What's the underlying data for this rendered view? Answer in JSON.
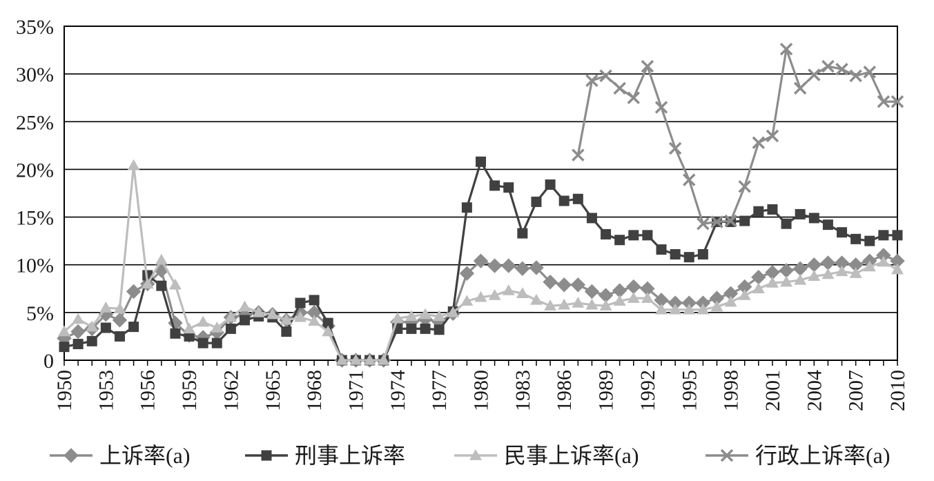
{
  "chart_data": {
    "type": "line",
    "title": "",
    "xlabel": "",
    "ylabel": "",
    "x_range": [
      1950,
      2010
    ],
    "ylim": [
      0,
      35
    ],
    "y_ticks": [
      {
        "value": 0,
        "label": "0"
      },
      {
        "value": 5,
        "label": "5%"
      },
      {
        "value": 10,
        "label": "10%"
      },
      {
        "value": 15,
        "label": "15%"
      },
      {
        "value": 20,
        "label": "20%"
      },
      {
        "value": 25,
        "label": "25%"
      },
      {
        "value": 30,
        "label": "30%"
      },
      {
        "value": 35,
        "label": "35%"
      }
    ],
    "x_tick_labels": [
      "1950",
      "1953",
      "1956",
      "1959",
      "1962",
      "1965",
      "1968",
      "1971",
      "1974",
      "1977",
      "1980",
      "1983",
      "1986",
      "1989",
      "1992",
      "1995",
      "1998",
      "2001",
      "2004",
      "2007",
      "2010"
    ],
    "grid": "horizontal",
    "legend_position": "bottom",
    "series": [
      {
        "name": "上诉率(a)",
        "color": "#8c8c8c",
        "marker": "diamond",
        "x_start": 1950,
        "values": [
          2.3,
          3.0,
          3.3,
          4.8,
          4.2,
          7.2,
          8.0,
          9.4,
          3.9,
          2.6,
          2.4,
          2.9,
          4.5,
          4.7,
          5.0,
          4.8,
          4.2,
          5.0,
          5.0,
          3.6,
          0,
          0,
          0,
          0,
          4.0,
          4.0,
          4.3,
          4.0,
          4.9,
          9.1,
          10.4,
          9.9,
          9.9,
          9.6,
          9.7,
          8.2,
          7.9,
          7.9,
          7.2,
          6.8,
          7.3,
          7.7,
          7.5,
          6.3,
          6.0,
          6.0,
          6.0,
          6.5,
          7.0,
          7.7,
          8.7,
          9.2,
          9.4,
          9.6,
          10.0,
          10.2,
          10.2,
          10.0,
          10.4,
          11.0,
          10.4
        ]
      },
      {
        "name": "刑事上诉率",
        "color": "#404040",
        "marker": "square",
        "x_start": 1950,
        "values": [
          1.4,
          1.7,
          2.0,
          3.4,
          2.5,
          3.5,
          8.9,
          7.8,
          2.8,
          2.5,
          1.8,
          1.8,
          3.3,
          4.2,
          4.6,
          4.5,
          3.0,
          6.0,
          6.3,
          3.9,
          0,
          0,
          0,
          0,
          3.3,
          3.3,
          3.3,
          3.2,
          5.1,
          16.0,
          20.8,
          18.3,
          18.1,
          13.3,
          16.6,
          18.4,
          16.7,
          16.9,
          14.9,
          13.2,
          12.6,
          13.1,
          13.1,
          11.6,
          11.1,
          10.8,
          11.1,
          14.5,
          14.5,
          14.6,
          15.6,
          15.8,
          14.3,
          15.3,
          14.9,
          14.2,
          13.4,
          12.7,
          12.5,
          13.1,
          13.1
        ]
      },
      {
        "name": "民事上诉率(a)",
        "color": "#bdbdbd",
        "marker": "triangle",
        "x_start": 1950,
        "values": [
          3.0,
          4.3,
          3.5,
          5.5,
          5.4,
          20.4,
          8.0,
          10.5,
          7.9,
          3.3,
          4.0,
          3.4,
          4.5,
          5.6,
          5.0,
          4.8,
          4.2,
          4.5,
          4.1,
          3.0,
          0,
          0,
          0,
          0,
          4.4,
          4.6,
          4.8,
          4.6,
          5.0,
          6.2,
          6.6,
          6.8,
          7.3,
          7.0,
          6.3,
          5.7,
          5.8,
          6.0,
          5.8,
          5.7,
          6.2,
          6.5,
          6.5,
          5.3,
          5.3,
          5.3,
          5.3,
          5.6,
          6.1,
          6.8,
          7.5,
          8.1,
          8.2,
          8.4,
          8.8,
          9.0,
          9.3,
          9.1,
          9.8,
          10.3,
          9.5
        ]
      },
      {
        "name": "行政上诉率(a)",
        "color": "#8c8c8c",
        "marker": "x",
        "x_start": 1987,
        "values": [
          21.5,
          29.3,
          29.8,
          28.5,
          27.5,
          30.8,
          26.5,
          22.2,
          18.9,
          14.3,
          14.5,
          14.6,
          18.2,
          22.8,
          23.5,
          32.6,
          28.5,
          29.9,
          30.8,
          30.5,
          29.8,
          30.2,
          27.1,
          27.1
        ]
      }
    ]
  }
}
